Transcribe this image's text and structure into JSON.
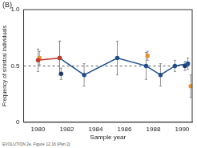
{
  "chart_data": {
    "type": "line",
    "panel_label": "(B)",
    "x_label": "Sample year",
    "y_label": "Frequency of sinistral individuals",
    "source": "EVOLUTION 2e, Figure 12.16 (Part 2)",
    "xlim": [
      1979,
      1990.7
    ],
    "xticks": [
      1980,
      1982,
      1984,
      1986,
      1988,
      1990
    ],
    "ylim": [
      0,
      1
    ],
    "yticks": [
      0,
      0.5,
      {
        "value": 1,
        "label": "1.0"
      }
    ],
    "grid": false,
    "reference_line": 0.5,
    "series": [
      {
        "type": "line",
        "color": "#c0392b",
        "marker": "circle",
        "line_style": "solid",
        "x": [
          1980,
          1981.5
        ],
        "values": [
          0.55,
          0.57
        ],
        "errors": [
          0.1,
          0.15
        ]
      },
      {
        "type": "line",
        "color": "#1f4e8c",
        "marker": "circle",
        "line_style": "solid",
        "x": [
          1981.5,
          1983.2,
          1985.5,
          1987.5,
          1988.5,
          1989.5,
          1990.4
        ],
        "values": [
          0.57,
          0.42,
          0.57,
          0.5,
          0.42,
          0.5,
          0.52
        ],
        "errors": [
          0.15,
          0.1,
          0.15,
          0.12,
          0.1,
          0.05,
          0.05
        ]
      },
      {
        "type": "scatter",
        "color": "#e8902e",
        "marker": "circle",
        "x": [
          1980.1,
          1987.6,
          1990.6
        ],
        "values": [
          0.57,
          0.59,
          0.32
        ],
        "errors": [
          0.06,
          0.04,
          0.1
        ]
      },
      {
        "type": "scatter",
        "color": "#1b3a6b",
        "marker": "circle",
        "x": [
          1981.6,
          1990.2
        ],
        "values": [
          0.43,
          0.5
        ],
        "errors": [
          0.05,
          0.04
        ]
      }
    ]
  }
}
